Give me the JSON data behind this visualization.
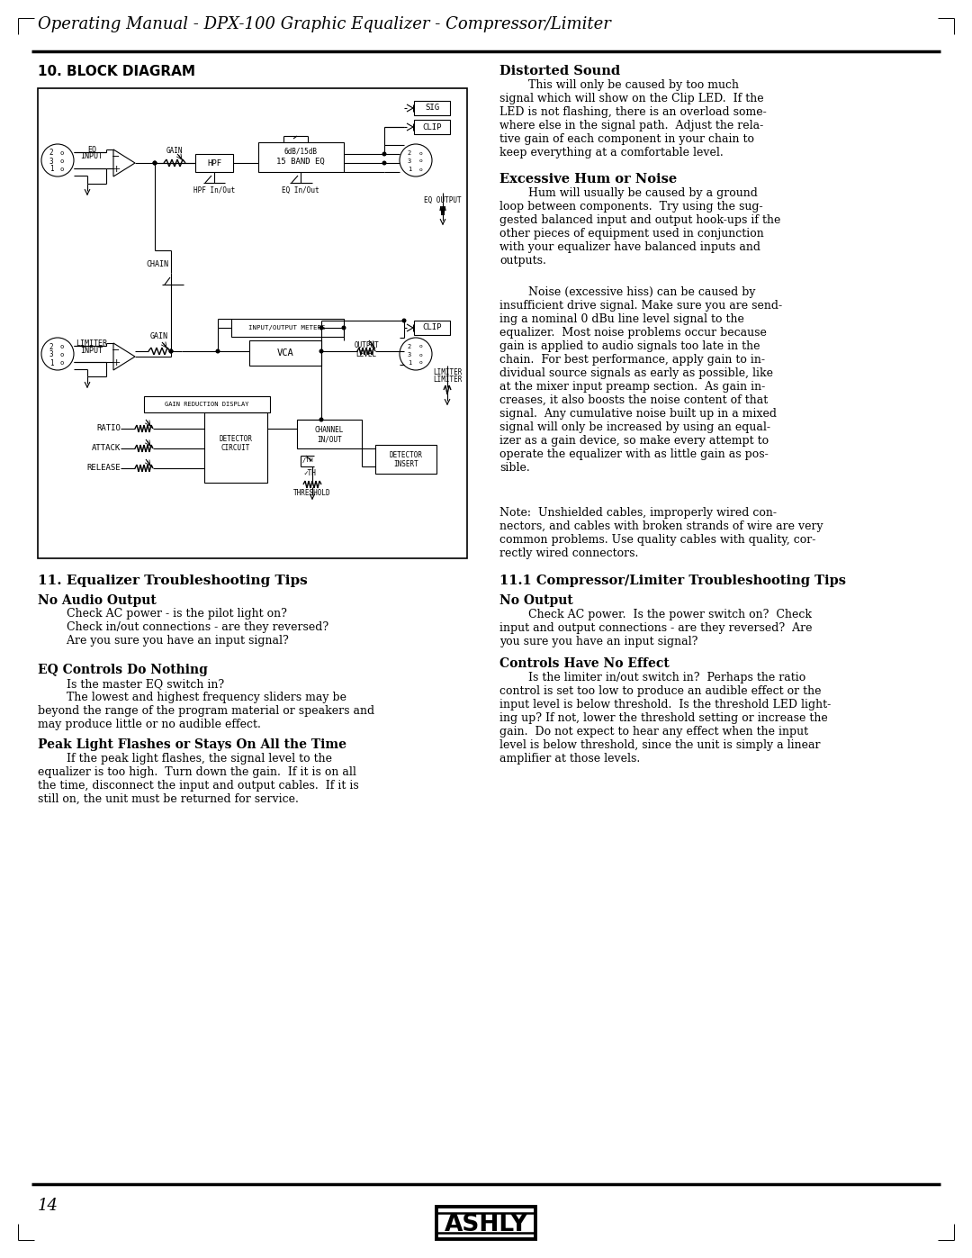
{
  "page_title": "Operating Manual - DPX-100 Graphic Equalizer - Compressor/Limiter",
  "page_number": "14",
  "section_10_title": "10. BLOCK DIAGRAM",
  "section_11_title": "11. Equalizer Troubleshooting Tips",
  "distorted_sound_title": "Distorted Sound",
  "distorted_sound_text": "        This will only be caused by too much\nsignal which will show on the Clip LED.  If the\nLED is not flashing, there is an overload some-\nwhere else in the signal path.  Adjust the rela-\ntive gain of each component in your chain to\nkeep everything at a comfortable level.",
  "excessive_hum_title": "Excessive Hum or Noise",
  "excessive_hum_text": "        Hum will usually be caused by a ground\nloop between components.  Try using the sug-\ngested balanced input and output hook-ups if the\nother pieces of equipment used in conjunction\nwith your equalizer have balanced inputs and\noutputs.",
  "noise_text": "        Noise (excessive hiss) can be caused by\ninsufficient drive signal. Make sure you are send-\ning a nominal 0 dBu line level signal to the\nequalizer.  Most noise problems occur because\ngain is applied to audio signals too late in the\nchain.  For best performance, apply gain to in-\ndividual source signals as early as possible, like\nat the mixer input preamp section.  As gain in-\ncreases, it also boosts the noise content of that\nsignal.  Any cumulative noise built up in a mixed\nsignal will only be increased by using an equal-\nizer as a gain device, so make every attempt to\noperate the equalizer with as little gain as pos-\nsible.",
  "no_audio_title": "No Audio Output",
  "no_audio_text": "        Check AC power - is the pilot light on?\n        Check in/out connections - are they reversed?\n        Are you sure you have an input signal?",
  "eq_controls_title": "EQ Controls Do Nothing",
  "eq_controls_text": "        Is the master EQ switch in?\n        The lowest and highest frequency sliders may be\nbeyond the range of the program material or speakers and\nmay produce little or no audible effect.",
  "peak_light_title": "Peak Light Flashes or Stays On All the Time",
  "peak_light_text": "        If the peak light flashes, the signal level to the\nequalizer is too high.  Turn down the gain.  If it is on all\nthe time, disconnect the input and output cables.  If it is\nstill on, the unit must be returned for service.",
  "section_11_1_title": "11.1 Compressor/Limiter Troubleshooting Tips",
  "no_output_title": "No Output",
  "no_output_text": "        Check AC power.  Is the power switch on?  Check\ninput and output connections - are they reversed?  Are\nyou sure you have an input signal?",
  "controls_no_effect_title": "Controls Have No Effect",
  "controls_no_effect_text": "        Is the limiter in/out switch in?  Perhaps the ratio\ncontrol is set too low to produce an audible effect or the\ninput level is below threshold.  Is the threshold LED light-\ning up? If not, lower the threshold setting or increase the\ngain.  Do not expect to hear any effect when the input\nlevel is below threshold, since the unit is simply a linear\namplifier at those levels.",
  "note_text": "Note:  Unshielded cables, improperly wired con-\nnectors, and cables with broken strands of wire are very\ncommon problems. Use quality cables with quality, cor-\nrectly wired connectors.",
  "bg_color": "#ffffff",
  "text_color": "#000000"
}
